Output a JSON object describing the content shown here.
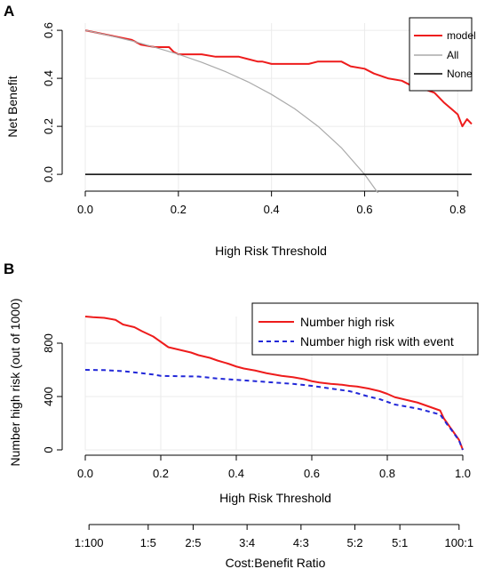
{
  "chart_data": [
    {
      "panel": "A",
      "type": "line",
      "xlabel": "High Risk Threshold",
      "ylabel": "Net Benefit",
      "xlim": [
        0,
        0.83
      ],
      "ylim": [
        -0.07,
        0.63
      ],
      "xticks": [
        "0.0",
        "0.2",
        "0.4",
        "0.6",
        "0.8"
      ],
      "yticks": [
        "0.0",
        "0.2",
        "0.4",
        "0.6"
      ],
      "grid": true,
      "legend_position": "top-right",
      "series": [
        {
          "name": "model",
          "color": "#ee1c1c",
          "x": [
            0,
            0.05,
            0.1,
            0.12,
            0.15,
            0.18,
            0.19,
            0.2,
            0.22,
            0.25,
            0.28,
            0.3,
            0.33,
            0.35,
            0.37,
            0.38,
            0.4,
            0.42,
            0.45,
            0.48,
            0.5,
            0.52,
            0.55,
            0.57,
            0.6,
            0.62,
            0.65,
            0.68,
            0.7,
            0.72,
            0.75,
            0.77,
            0.8,
            0.81,
            0.82,
            0.83
          ],
          "y": [
            0.6,
            0.58,
            0.56,
            0.54,
            0.53,
            0.53,
            0.51,
            0.5,
            0.5,
            0.5,
            0.49,
            0.49,
            0.49,
            0.48,
            0.47,
            0.47,
            0.46,
            0.46,
            0.46,
            0.46,
            0.47,
            0.47,
            0.47,
            0.45,
            0.44,
            0.42,
            0.4,
            0.39,
            0.37,
            0.36,
            0.34,
            0.3,
            0.25,
            0.2,
            0.23,
            0.21
          ]
        },
        {
          "name": "All",
          "color": "#aaaaaa",
          "x": [
            0,
            0.05,
            0.1,
            0.15,
            0.2,
            0.25,
            0.3,
            0.35,
            0.4,
            0.45,
            0.5,
            0.55,
            0.6,
            0.63
          ],
          "y": [
            0.6,
            0.579,
            0.556,
            0.529,
            0.5,
            0.467,
            0.429,
            0.385,
            0.333,
            0.273,
            0.2,
            0.111,
            0.0,
            -0.081
          ]
        },
        {
          "name": "None",
          "color": "#000000",
          "x": [
            0,
            0.83
          ],
          "y": [
            0,
            0
          ]
        }
      ]
    },
    {
      "panel": "B",
      "type": "line",
      "xlabel": "High Risk Threshold",
      "ylabel": "Number high risk (out of 1000)",
      "xlabel2": "Cost:Benefit Ratio",
      "xlim": [
        0,
        1
      ],
      "ylim": [
        0,
        1000
      ],
      "xticks": [
        "0.0",
        "0.2",
        "0.4",
        "0.6",
        "0.8",
        "1.0"
      ],
      "yticks": [
        "0",
        "400",
        "800"
      ],
      "cost_benefit_ticks": [
        "1:100",
        "1:5",
        "2:5",
        "3:4",
        "4:3",
        "5:2",
        "5:1",
        "100:1"
      ],
      "grid": true,
      "legend_position": "top-right",
      "series": [
        {
          "name": "Number high risk",
          "color": "#ee1c1c",
          "x": [
            0,
            0.02,
            0.05,
            0.08,
            0.1,
            0.13,
            0.15,
            0.18,
            0.2,
            0.22,
            0.25,
            0.28,
            0.3,
            0.33,
            0.35,
            0.38,
            0.4,
            0.42,
            0.45,
            0.48,
            0.5,
            0.52,
            0.55,
            0.58,
            0.6,
            0.62,
            0.65,
            0.68,
            0.7,
            0.72,
            0.75,
            0.78,
            0.8,
            0.82,
            0.85,
            0.88,
            0.9,
            0.92,
            0.94,
            0.95,
            0.96,
            0.97,
            0.98,
            0.99,
            1.0
          ],
          "y": [
            1000,
            995,
            990,
            975,
            940,
            920,
            890,
            850,
            810,
            770,
            750,
            730,
            710,
            690,
            670,
            645,
            625,
            610,
            595,
            575,
            565,
            555,
            545,
            530,
            515,
            505,
            495,
            488,
            480,
            475,
            460,
            440,
            420,
            395,
            375,
            355,
            335,
            315,
            295,
            235,
            195,
            155,
            115,
            75,
            0
          ]
        },
        {
          "name": "Number high risk with event",
          "color": "#2228d8",
          "x": [
            0,
            0.05,
            0.1,
            0.15,
            0.18,
            0.2,
            0.25,
            0.3,
            0.35,
            0.4,
            0.45,
            0.5,
            0.55,
            0.6,
            0.65,
            0.7,
            0.72,
            0.75,
            0.78,
            0.8,
            0.82,
            0.85,
            0.88,
            0.9,
            0.92,
            0.94,
            0.95,
            0.96,
            0.97,
            0.98,
            0.99,
            1.0
          ],
          "y": [
            600,
            598,
            590,
            575,
            565,
            555,
            552,
            550,
            535,
            525,
            515,
            505,
            495,
            480,
            460,
            440,
            425,
            400,
            380,
            360,
            340,
            325,
            310,
            295,
            280,
            265,
            225,
            185,
            150,
            110,
            70,
            0
          ]
        }
      ]
    }
  ]
}
